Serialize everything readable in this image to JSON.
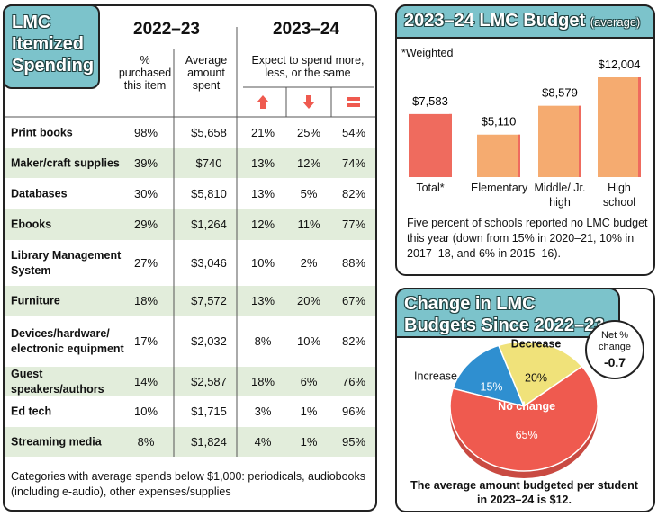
{
  "table": {
    "title": "LMC Itemized Spending",
    "group_headers": [
      "2022–23",
      "2023–24"
    ],
    "column_headers": [
      "% purchased this item",
      "Average amount spent",
      "Expect to spend more, less, or the same"
    ],
    "rows": [
      [
        "Print books",
        "98%",
        "$5,658",
        "21%",
        "25%",
        "54%"
      ],
      [
        "Maker/craft supplies",
        "39%",
        "$740",
        "13%",
        "12%",
        "74%"
      ],
      [
        "Databases",
        "30%",
        "$5,810",
        "13%",
        "5%",
        "82%"
      ],
      [
        "Ebooks",
        "29%",
        "$1,264",
        "12%",
        "11%",
        "77%"
      ],
      [
        "Library Management System",
        "27%",
        "$3,046",
        "10%",
        "2%",
        "88%"
      ],
      [
        "Furniture",
        "18%",
        "$7,572",
        "13%",
        "20%",
        "67%"
      ],
      [
        "Devices/hardware/ electronic equipment",
        "17%",
        "$2,032",
        "8%",
        "10%",
        "82%"
      ],
      [
        "Guest speakers/authors",
        "14%",
        "$2,587",
        "18%",
        "6%",
        "76%"
      ],
      [
        "Ed tech",
        "10%",
        "$1,715",
        "3%",
        "1%",
        "96%"
      ],
      [
        "Streaming media",
        "8%",
        "$1,824",
        "4%",
        "1%",
        "95%"
      ]
    ],
    "footnote": "Categories with average spends below $1,000: periodicals, audiobooks (including e-audio), other expenses/supplies"
  },
  "chart_data": [
    {
      "type": "bar",
      "title": "2023–24 LMC Budget",
      "subtitle": "(average)",
      "note": "*Weighted",
      "categories": [
        "Total*",
        "Elementary",
        "Middle/ Jr. high",
        "High school"
      ],
      "values": [
        7583,
        5110,
        8579,
        12004
      ],
      "value_labels": [
        "$7,583",
        "$5,110",
        "$8,579",
        "$12,004"
      ],
      "colors": [
        "#ef6b5e",
        "#f5ab70",
        "#f5ab70",
        "#f5ab70"
      ],
      "footnote": "Five percent of schools reported no LMC budget this year (down from 15% in 2020–21, 10% in 2017–18, and 6% in 2015–16)."
    },
    {
      "type": "pie",
      "title": "Change in LMC Budgets Since 2022–23",
      "categories": [
        "Increase",
        "Decrease",
        "No change"
      ],
      "values": [
        15,
        20,
        65
      ],
      "value_labels": [
        "15%",
        "20%",
        "65%"
      ],
      "colors": [
        "#2f8fd0",
        "#f0e27a",
        "#ef5a4f"
      ],
      "annotation": {
        "label": "Net % change",
        "value": -0.7
      },
      "footnote": "The average amount budgeted per student in 2023–24 is $12."
    }
  ]
}
